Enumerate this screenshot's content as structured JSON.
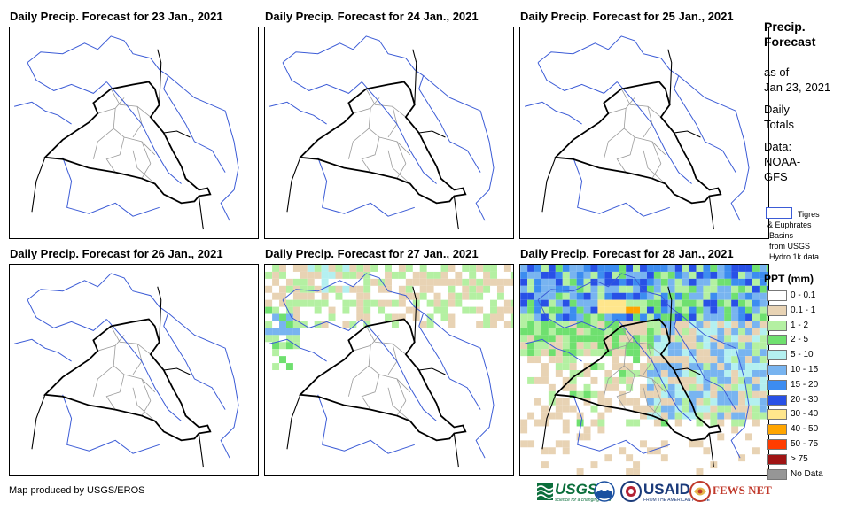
{
  "panels": [
    {
      "title": "Daily Precip. Forecast for 23 Jan., 2021",
      "precip": "none"
    },
    {
      "title": "Daily Precip. Forecast for 24 Jan., 2021",
      "precip": "none"
    },
    {
      "title": "Daily Precip. Forecast for 25 Jan., 2021",
      "precip": "none"
    },
    {
      "title": "Daily Precip. Forecast for 26 Jan., 2021",
      "precip": "none"
    },
    {
      "title": "Daily Precip. Forecast for 27 Jan., 2021",
      "precip": "light"
    },
    {
      "title": "Daily Precip. Forecast for 28 Jan., 2021",
      "precip": "heavy"
    }
  ],
  "side": {
    "title_1": "Precip.",
    "title_2": "Forecast",
    "asof_1": "as of",
    "asof_2": "Jan 23, 2021",
    "daily_1": "Daily",
    "daily_2": "Totals",
    "data_1": "Data:",
    "data_2": "NOAA-",
    "data_3": "GFS"
  },
  "basin_legend": {
    "line_1": "Tigres",
    "line_2": "& Euphrates",
    "line_3": "Basins",
    "line_4": "from USGS",
    "line_5": "Hydro 1k data",
    "color": "#3b5bd6"
  },
  "ppt_legend": {
    "title": "PPT (mm)",
    "items": [
      {
        "label": "0 - 0.1",
        "color": "#ffffff"
      },
      {
        "label": "0.1 - 1",
        "color": "#e8d3b4"
      },
      {
        "label": "1 - 2",
        "color": "#b4f0a2"
      },
      {
        "label": "2 - 5",
        "color": "#6fe06f"
      },
      {
        "label": "5 - 10",
        "color": "#b4f0f0"
      },
      {
        "label": "10 - 15",
        "color": "#78b4f0"
      },
      {
        "label": "15 - 20",
        "color": "#3c8cf0"
      },
      {
        "label": "20 - 30",
        "color": "#2850e6"
      },
      {
        "label": "30 - 40",
        "color": "#ffe68c"
      },
      {
        "label": "40 - 50",
        "color": "#ffa500"
      },
      {
        "label": "50 - 75",
        "color": "#ff3c00"
      },
      {
        "label": "> 75",
        "color": "#a01414"
      },
      {
        "label": "No Data",
        "color": "#969696"
      }
    ]
  },
  "credit": "Map produced by USGS/EROS",
  "logos": {
    "usgs": "USGS",
    "usgs_tag": "science for a changing world",
    "usaid": "USAID",
    "usaid_tag": "FROM THE AMERICAN PEOPLE",
    "fews": "FEWS NET"
  }
}
